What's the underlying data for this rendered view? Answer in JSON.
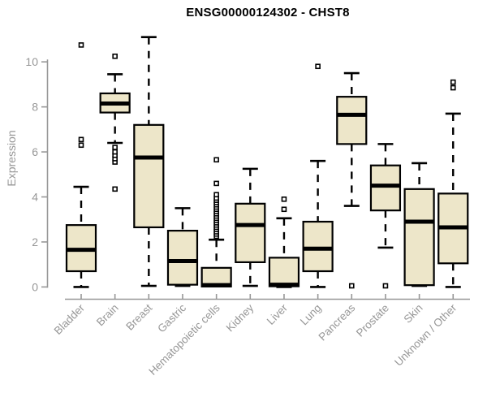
{
  "title": "ENSG00000124302 - CHST8",
  "chart_data": {
    "type": "boxplot",
    "title": "ENSG00000124302 - CHST8",
    "xlabel": "",
    "ylabel": "Expression",
    "ylim": [
      0,
      11.2
    ],
    "yticks": [
      0,
      2,
      4,
      6,
      8,
      10
    ],
    "grid": false,
    "legend": "none",
    "box_fill": "#ede6c9",
    "box_stroke": "#000000",
    "axis_color": "#979797",
    "categories": [
      "Bladder",
      "Brain",
      "Breast",
      "Gastric",
      "Hematopoietic cells",
      "Kidney",
      "Liver",
      "Lung",
      "Pancreas",
      "Prostate",
      "Skin",
      "Unknown / Other"
    ],
    "series": [
      {
        "category": "Bladder",
        "whisker_low": 0.0,
        "q1": 0.7,
        "median": 1.65,
        "q3": 2.75,
        "whisker_high": 4.45,
        "outliers": [
          6.3,
          6.55,
          10.75
        ]
      },
      {
        "category": "Brain",
        "whisker_low": 6.4,
        "q1": 7.75,
        "median": 8.15,
        "q3": 8.6,
        "whisker_high": 9.45,
        "outliers": [
          4.35,
          5.55,
          5.7,
          5.85,
          6.0,
          6.2,
          10.25
        ]
      },
      {
        "category": "Breast",
        "whisker_low": 0.05,
        "q1": 2.65,
        "median": 5.75,
        "q3": 7.2,
        "whisker_high": 11.1,
        "outliers": []
      },
      {
        "category": "Gastric",
        "whisker_low": 0.05,
        "q1": 0.1,
        "median": 1.15,
        "q3": 2.5,
        "whisker_high": 3.5,
        "outliers": []
      },
      {
        "category": "Hematopoietic cells",
        "whisker_low": 0.0,
        "q1": 0.02,
        "median": 0.08,
        "q3": 0.85,
        "whisker_high": 2.1,
        "outliers": [
          2.25,
          2.35,
          2.45,
          2.55,
          2.65,
          2.75,
          2.85,
          2.95,
          3.05,
          3.15,
          3.25,
          3.35,
          3.45,
          3.55,
          3.65,
          3.75,
          3.85,
          3.95,
          4.1,
          4.6,
          5.65
        ]
      },
      {
        "category": "Kidney",
        "whisker_low": 0.05,
        "q1": 1.1,
        "median": 2.75,
        "q3": 3.7,
        "whisker_high": 5.25,
        "outliers": []
      },
      {
        "category": "Liver",
        "whisker_low": 0.0,
        "q1": 0.03,
        "median": 0.1,
        "q3": 1.3,
        "whisker_high": 3.05,
        "outliers": [
          3.45,
          3.9
        ]
      },
      {
        "category": "Lung",
        "whisker_low": 0.0,
        "q1": 0.7,
        "median": 1.7,
        "q3": 2.9,
        "whisker_high": 5.6,
        "outliers": [
          9.8
        ]
      },
      {
        "category": "Pancreas",
        "whisker_low": 3.6,
        "q1": 6.35,
        "median": 7.65,
        "q3": 8.45,
        "whisker_high": 9.5,
        "outliers": [
          0.05
        ]
      },
      {
        "category": "Prostate",
        "whisker_low": 1.75,
        "q1": 3.4,
        "median": 4.5,
        "q3": 5.4,
        "whisker_high": 6.35,
        "outliers": [
          0.05
        ]
      },
      {
        "category": "Skin",
        "whisker_low": 0.05,
        "q1": 0.08,
        "median": 2.9,
        "q3": 4.35,
        "whisker_high": 5.5,
        "outliers": []
      },
      {
        "category": "Unknown / Other",
        "whisker_low": 0.0,
        "q1": 1.05,
        "median": 2.65,
        "q3": 4.15,
        "whisker_high": 7.7,
        "outliers": [
          8.85,
          9.1
        ]
      }
    ]
  }
}
